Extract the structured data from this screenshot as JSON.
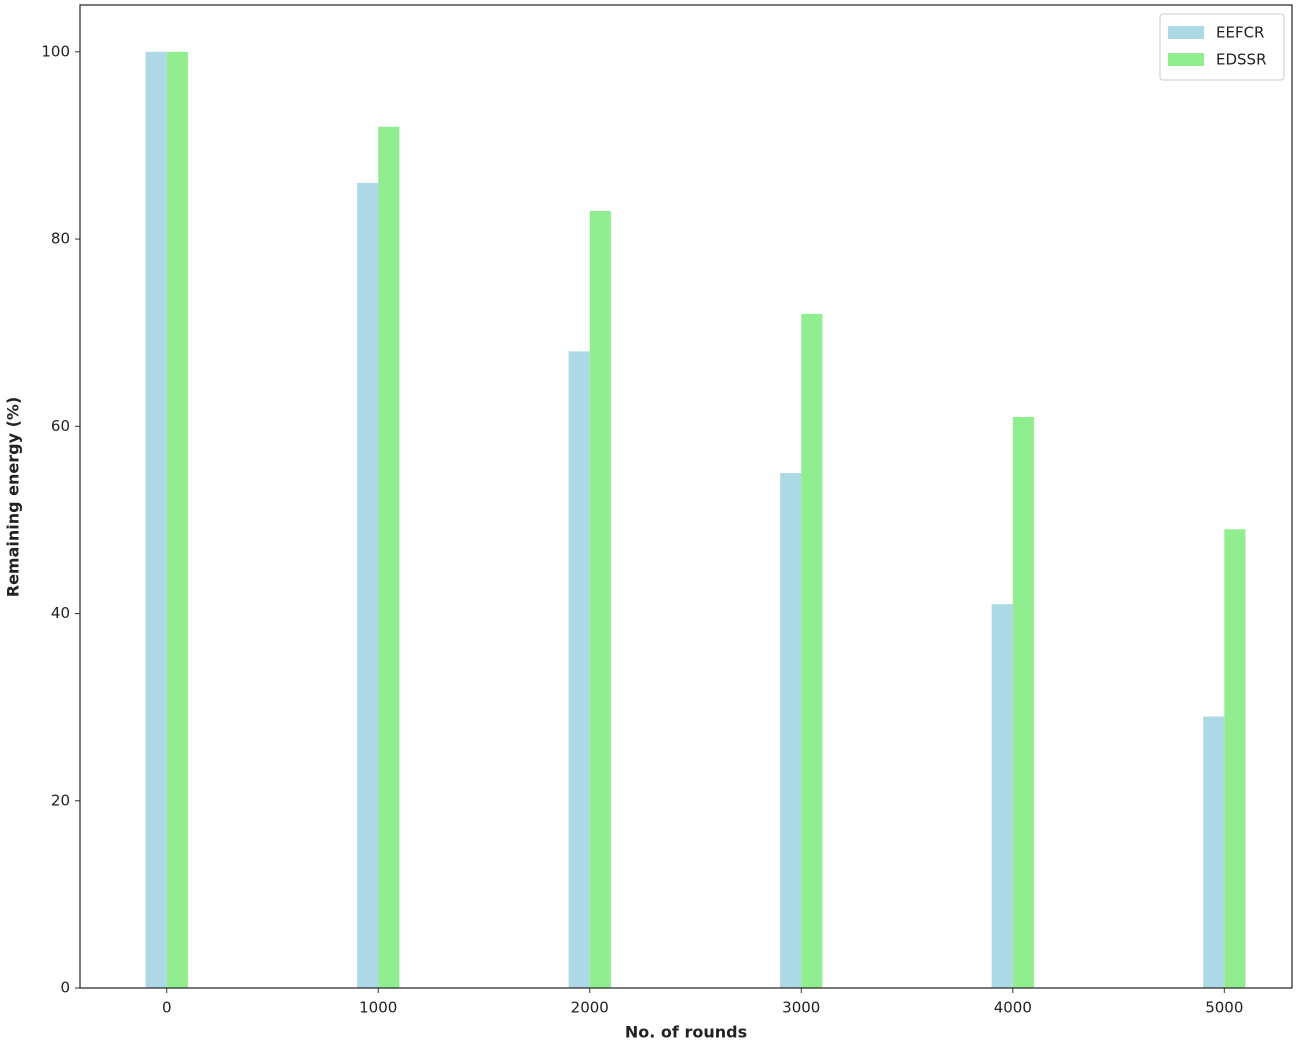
{
  "chart_data": {
    "type": "bar",
    "x_label": "No. of rounds",
    "y_label": "Remaining energy (%)",
    "x": [
      0,
      1000,
      2000,
      3000,
      4000,
      5000
    ],
    "series": [
      {
        "name": "EEFCR",
        "color": "#add8e6",
        "values": [
          100,
          86,
          68,
          55,
          41,
          29
        ]
      },
      {
        "name": "EDSSR",
        "color": "#90ee90",
        "values": [
          100,
          92,
          83,
          72,
          61,
          49
        ]
      }
    ],
    "xlim": [
      -410,
      5320
    ],
    "ylim": [
      0,
      105
    ],
    "xticks": [
      0,
      1000,
      2000,
      3000,
      4000,
      5000
    ],
    "yticks": [
      0,
      20,
      40,
      60,
      80,
      100
    ],
    "legend": "upper right"
  }
}
